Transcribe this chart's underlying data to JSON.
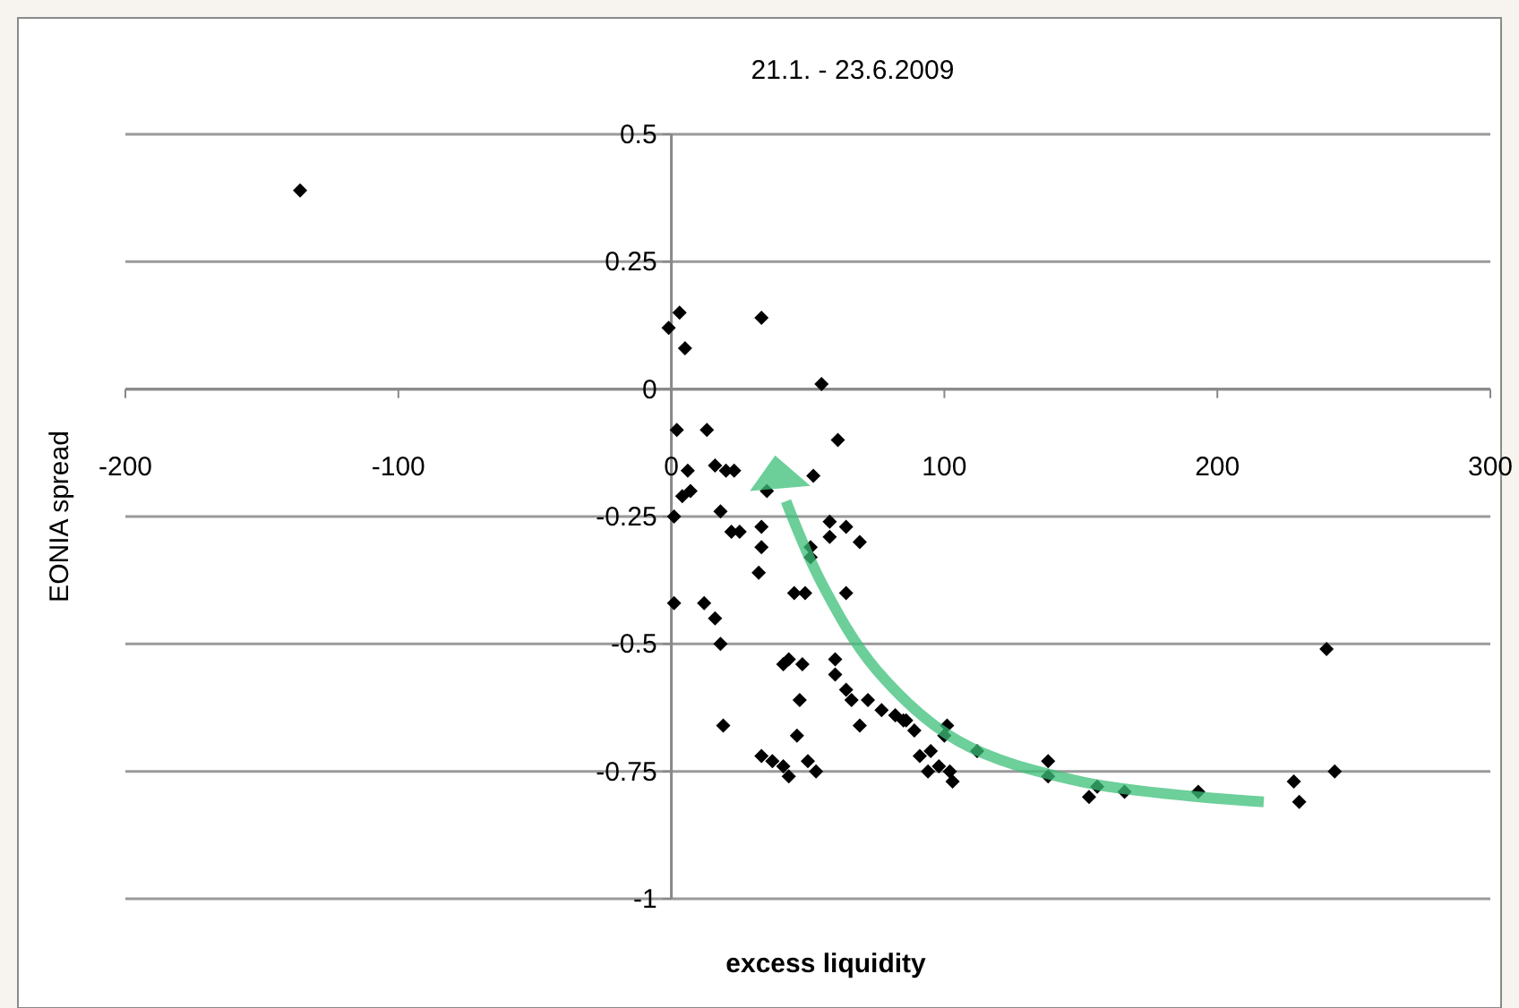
{
  "chart_data": {
    "type": "scatter",
    "title": "21.1. - 23.6.2009",
    "xlabel": "excess liquidity",
    "ylabel": "EONIA spread",
    "xlim": [
      -200,
      300
    ],
    "xticks": [
      -200,
      -100,
      0,
      100,
      200,
      300
    ],
    "ylim": [
      -1,
      0.5
    ],
    "yticks": [
      -1,
      -0.75,
      -0.5,
      -0.25,
      0,
      0.25,
      0.5
    ],
    "grid": "y",
    "marker": "diamond",
    "series": [
      {
        "color": "#000000",
        "x": [
          -136,
          -1,
          3,
          5,
          33,
          55,
          61,
          2,
          13,
          6,
          1,
          4,
          7,
          16,
          20,
          23,
          18,
          22,
          25,
          33,
          33,
          32,
          35,
          52,
          58,
          58,
          64,
          69,
          51,
          51,
          45,
          49,
          64,
          1,
          12,
          16,
          18,
          43,
          41,
          48,
          47,
          60,
          60,
          64,
          66,
          72,
          77,
          82,
          19,
          46,
          69,
          86,
          89,
          33,
          37,
          41,
          43,
          50,
          53,
          91,
          95,
          98,
          94,
          102,
          100,
          101,
          112,
          138,
          138,
          153,
          156,
          166,
          193,
          240,
          243,
          228,
          230,
          85,
          103
        ],
        "values": [
          0.39,
          0.12,
          0.15,
          0.08,
          0.14,
          0.01,
          -0.1,
          -0.08,
          -0.08,
          -0.16,
          -0.25,
          -0.21,
          -0.2,
          -0.15,
          -0.16,
          -0.16,
          -0.24,
          -0.28,
          -0.28,
          -0.27,
          -0.31,
          -0.36,
          -0.2,
          -0.17,
          -0.26,
          -0.29,
          -0.27,
          -0.3,
          -0.31,
          -0.33,
          -0.4,
          -0.4,
          -0.4,
          -0.42,
          -0.42,
          -0.45,
          -0.5,
          -0.53,
          -0.54,
          -0.54,
          -0.61,
          -0.53,
          -0.56,
          -0.59,
          -0.61,
          -0.61,
          -0.63,
          -0.64,
          -0.66,
          -0.68,
          -0.66,
          -0.65,
          -0.67,
          -0.72,
          -0.73,
          -0.74,
          -0.76,
          -0.73,
          -0.75,
          -0.72,
          -0.71,
          -0.74,
          -0.75,
          -0.75,
          -0.68,
          -0.66,
          -0.71,
          -0.73,
          -0.76,
          -0.8,
          -0.78,
          -0.79,
          -0.79,
          -0.51,
          -0.75,
          -0.77,
          -0.81,
          -0.65,
          -0.77
        ]
      }
    ]
  }
}
